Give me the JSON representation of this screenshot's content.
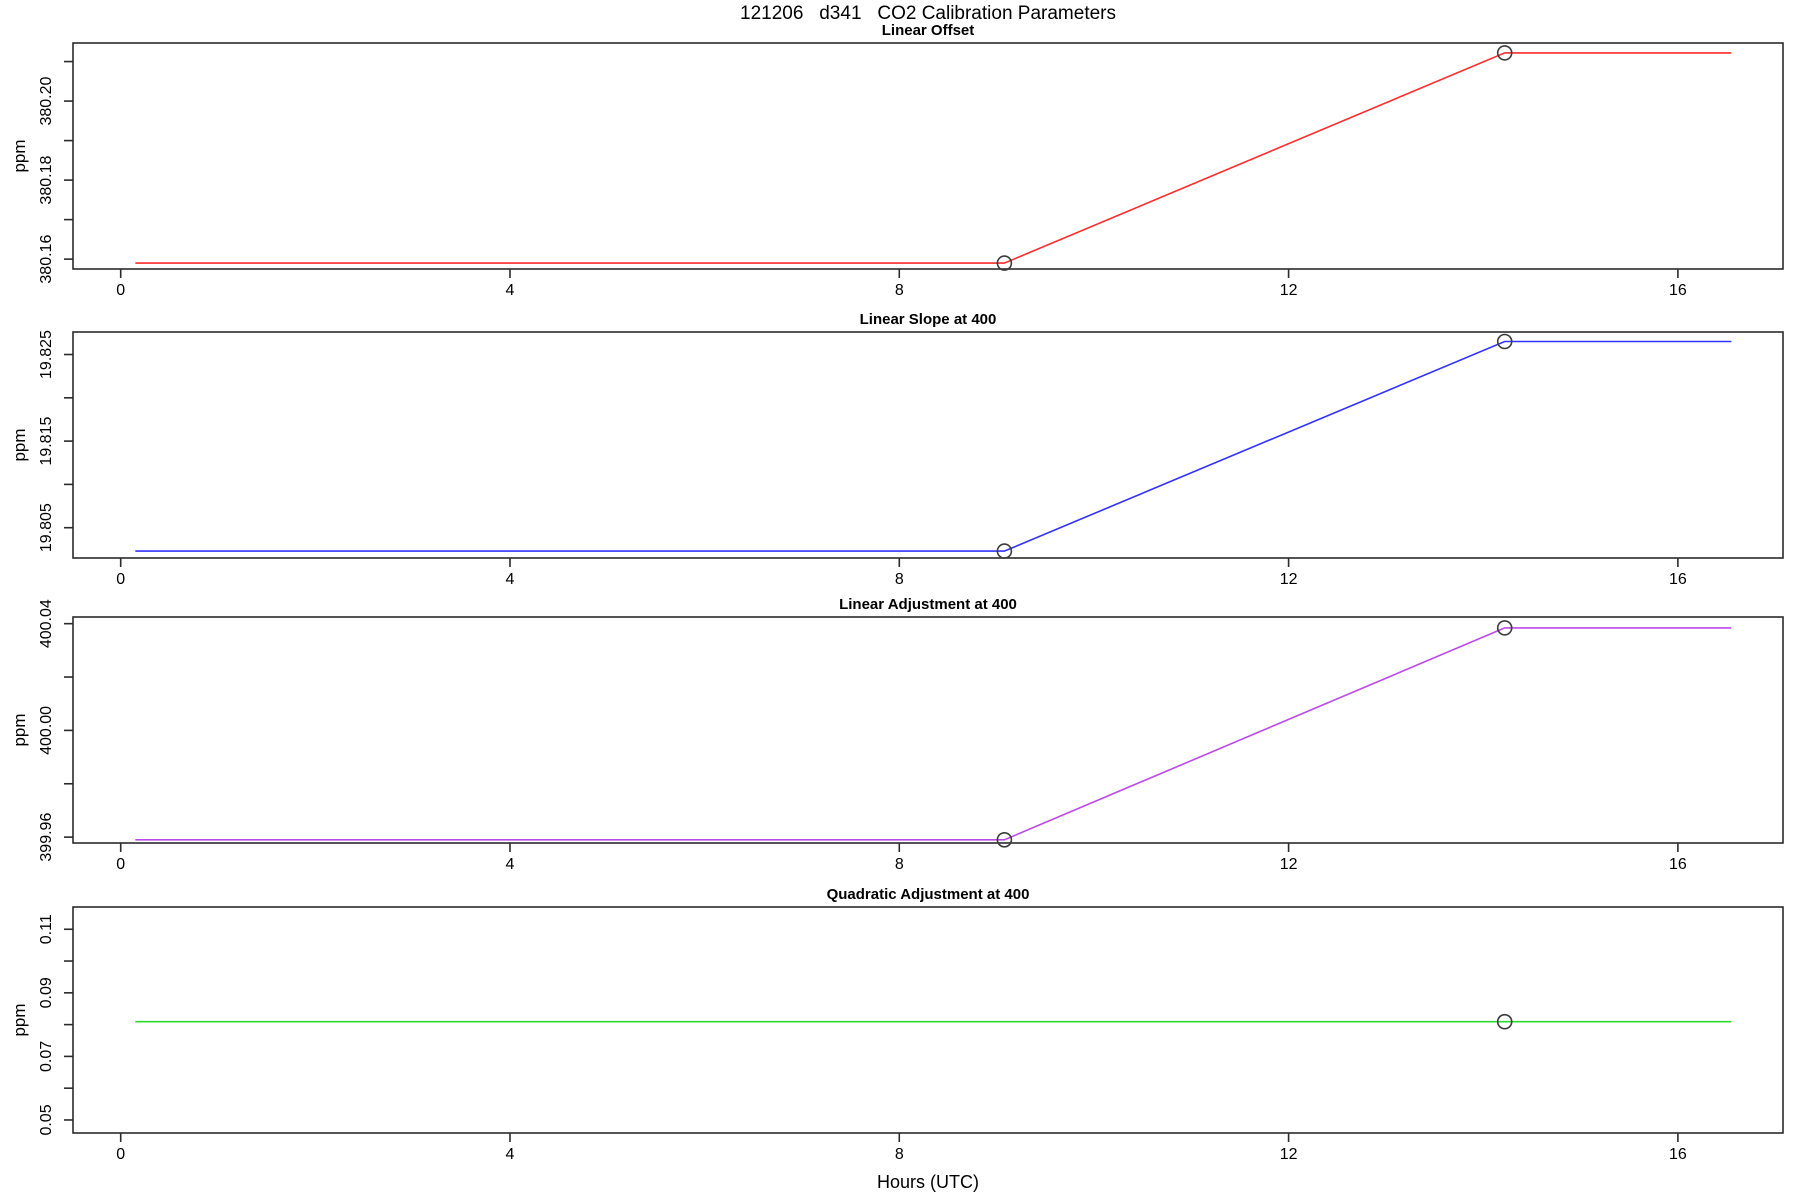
{
  "figure": {
    "background": "#ffffff",
    "axis_color": "#2b2b2b",
    "marker_color": "#3c3c3c"
  },
  "chart_data": {
    "type": "line",
    "title": "121206   d341   CO2 Calibration Parameters",
    "xlabel": "Hours (UTC)",
    "grid": "off",
    "legend": "none",
    "x_ticks": [
      {
        "v": 0,
        "label": "0"
      },
      {
        "v": 4,
        "label": "4"
      },
      {
        "v": 8,
        "label": "8"
      },
      {
        "v": 12,
        "label": "12"
      },
      {
        "v": 16,
        "label": "16"
      }
    ],
    "xlim": [
      -0.49,
      17.08
    ],
    "panels": [
      {
        "title": "Linear Offset",
        "ylabel": "ppm",
        "color": "#ff2d2d",
        "ylim": [
          380.1575,
          380.2147
        ],
        "y_ticks": [
          {
            "v": 380.16,
            "label": "380.16"
          },
          {
            "v": 380.17,
            "label": ""
          },
          {
            "v": 380.18,
            "label": "380.18"
          },
          {
            "v": 380.19,
            "label": ""
          },
          {
            "v": 380.2,
            "label": "380.20"
          },
          {
            "v": 380.21,
            "label": ""
          }
        ],
        "points": [
          [
            0.15,
            380.159
          ],
          [
            9.08,
            380.159
          ],
          [
            14.22,
            380.2122
          ],
          [
            16.55,
            380.2122
          ]
        ],
        "markers": [
          [
            9.08,
            380.159
          ],
          [
            14.22,
            380.2122
          ]
        ]
      },
      {
        "title": "Linear Slope at 400",
        "ylabel": "ppm",
        "color": "#3232ff",
        "ylim": [
          19.8015,
          19.8276
        ],
        "y_ticks": [
          {
            "v": 19.805,
            "label": "19.805"
          },
          {
            "v": 19.81,
            "label": ""
          },
          {
            "v": 19.815,
            "label": "19.815"
          },
          {
            "v": 19.82,
            "label": ""
          },
          {
            "v": 19.825,
            "label": "19.825"
          }
        ],
        "points": [
          [
            0.15,
            19.8023
          ],
          [
            9.08,
            19.8023
          ],
          [
            14.22,
            19.8265
          ],
          [
            16.55,
            19.8265
          ]
        ],
        "markers": [
          [
            9.08,
            19.8023
          ],
          [
            14.22,
            19.8265
          ]
        ]
      },
      {
        "title": "Linear Adjustment at 400",
        "ylabel": "ppm",
        "color": "#bc49ea",
        "ylim": [
          399.9578,
          400.0425
        ],
        "y_ticks": [
          {
            "v": 399.96,
            "label": "399.96"
          },
          {
            "v": 399.98,
            "label": ""
          },
          {
            "v": 400.0,
            "label": "400.00"
          },
          {
            "v": 400.02,
            "label": ""
          },
          {
            "v": 400.04,
            "label": "400.04"
          }
        ],
        "points": [
          [
            0.15,
            399.959
          ],
          [
            9.08,
            399.959
          ],
          [
            14.22,
            400.0384
          ],
          [
            16.55,
            400.0384
          ]
        ],
        "markers": [
          [
            9.08,
            399.959
          ],
          [
            14.22,
            400.0384
          ]
        ]
      },
      {
        "title": "Quadratic Adjustment at 400",
        "ylabel": "ppm",
        "color": "#2cdc2c",
        "ylim": [
          0.0459,
          0.117
        ],
        "y_ticks": [
          {
            "v": 0.05,
            "label": "0.05"
          },
          {
            "v": 0.06,
            "label": ""
          },
          {
            "v": 0.07,
            "label": "0.07"
          },
          {
            "v": 0.08,
            "label": ""
          },
          {
            "v": 0.09,
            "label": "0.09"
          },
          {
            "v": 0.1,
            "label": ""
          },
          {
            "v": 0.11,
            "label": "0.11"
          }
        ],
        "points": [
          [
            0.15,
            0.0809
          ],
          [
            16.55,
            0.0809
          ]
        ],
        "markers": [
          [
            14.22,
            0.0809
          ]
        ]
      }
    ]
  }
}
